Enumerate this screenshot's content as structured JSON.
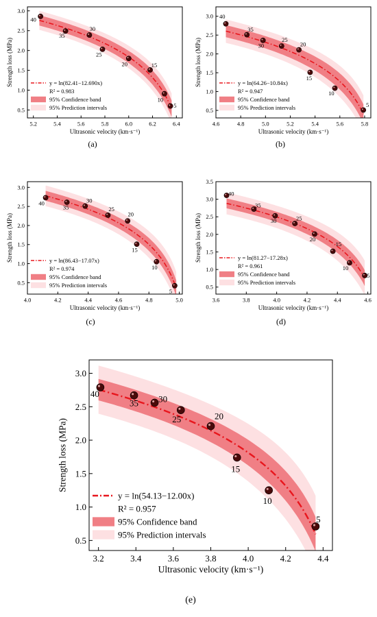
{
  "colors": {
    "fit_line": "#e8161d",
    "confidence_band": "#f07f85",
    "prediction_band": "#fde0e2",
    "point": "#4a0a0a"
  },
  "chart_data": [
    {
      "type": "scatter",
      "panel_label": "(a)",
      "xlabel": "Ultrasonic velocity (km·s⁻¹)",
      "ylabel": "Strength loss (MPa)",
      "xlim": [
        5.15,
        6.45
      ],
      "ylim": [
        0.3,
        3.1
      ],
      "xticks": [
        5.2,
        5.4,
        5.6,
        5.8,
        6.0,
        6.2,
        6.4
      ],
      "xtick_labels": [
        "5.2",
        "5.4",
        "5.6",
        "5.8",
        "6.0",
        "6.2",
        "6.4"
      ],
      "yticks": [
        0.5,
        1.0,
        1.5,
        2.0,
        2.5,
        3.0
      ],
      "ytick_labels": [
        "0.5",
        "1.0",
        "1.5",
        "2.0",
        "2.5",
        "3.0"
      ],
      "fit": {
        "a": 82.41,
        "b": 12.69,
        "x_start": 5.25,
        "x_end": 6.36
      },
      "ci_halfwidth": 0.13,
      "pi_halfwidth": 0.24,
      "points": [
        {
          "label": "40",
          "x": 5.26,
          "y": 2.86,
          "lx": -14,
          "ly": 10
        },
        {
          "label": "35",
          "x": 5.47,
          "y": 2.49,
          "lx": -7,
          "ly": 13
        },
        {
          "label": "30",
          "x": 5.67,
          "y": 2.39,
          "lx": 6,
          "ly": -8
        },
        {
          "label": "25",
          "x": 5.78,
          "y": 2.03,
          "lx": -7,
          "ly": 14
        },
        {
          "label": "20",
          "x": 6.0,
          "y": 1.8,
          "lx": -8,
          "ly": 15
        },
        {
          "label": "15",
          "x": 6.18,
          "y": 1.51,
          "lx": 8,
          "ly": -5
        },
        {
          "label": "10",
          "x": 6.3,
          "y": 0.91,
          "lx": -8,
          "ly": 16
        },
        {
          "label": "5",
          "x": 6.35,
          "y": 0.6,
          "lx": 9,
          "ly": 3
        }
      ],
      "legend": {
        "fit_label": "y = ln(82.41−12.690x)",
        "r2_label": "R² = 0.983",
        "ci_label": "95% Confidence band",
        "pi_label": "95% Prediction intervals"
      }
    },
    {
      "type": "scatter",
      "panel_label": "(b)",
      "xlabel": "Ultrasonic velocity (km·s⁻¹)",
      "ylabel": "Strength loss (MPa)",
      "xlim": [
        4.6,
        5.85
      ],
      "ylim": [
        0.3,
        3.25
      ],
      "xticks": [
        4.6,
        4.8,
        5.0,
        5.2,
        5.4,
        5.6,
        5.8
      ],
      "xtick_labels": [
        "4.6",
        "4.8",
        "5.0",
        "5.2",
        "5.4",
        "5.6",
        "5.8"
      ],
      "yticks": [
        0.5,
        1.0,
        1.5,
        2.0,
        2.5,
        3.0
      ],
      "ytick_labels": [
        "0.5",
        "1.0",
        "1.5",
        "2.0",
        "2.5",
        "3.0"
      ],
      "fit": {
        "a": 64.26,
        "b": 10.84,
        "x_start": 4.68,
        "x_end": 5.79
      },
      "ci_halfwidth": 0.16,
      "pi_halfwidth": 0.31,
      "points": [
        {
          "label": "40",
          "x": 4.68,
          "y": 2.8,
          "lx": -7,
          "ly": -10
        },
        {
          "label": "35",
          "x": 4.85,
          "y": 2.51,
          "lx": 7,
          "ly": -6
        },
        {
          "label": "30",
          "x": 4.98,
          "y": 2.36,
          "lx": -4,
          "ly": 14
        },
        {
          "label": "25",
          "x": 5.13,
          "y": 2.21,
          "lx": 6,
          "ly": -8
        },
        {
          "label": "20",
          "x": 5.27,
          "y": 2.11,
          "lx": 8,
          "ly": -7
        },
        {
          "label": "15",
          "x": 5.36,
          "y": 1.51,
          "lx": -2,
          "ly": 15
        },
        {
          "label": "10",
          "x": 5.56,
          "y": 1.09,
          "lx": -7,
          "ly": 14
        },
        {
          "label": "5",
          "x": 5.79,
          "y": 0.51,
          "lx": 8,
          "ly": -6
        }
      ],
      "legend": {
        "fit_label": "y = ln(64.26−10.84x)",
        "r2_label": "R² = 0.947",
        "ci_label": "95% Confidence band",
        "pi_label": "95% Prediction intervals"
      }
    },
    {
      "type": "scatter",
      "panel_label": "(c)",
      "xlabel": "Ultrasonic velocity (km·s⁻¹)",
      "ylabel": "Strength loss (MPa)",
      "xlim": [
        4.0,
        5.02
      ],
      "ylim": [
        0.2,
        3.15
      ],
      "xticks": [
        4.0,
        4.2,
        4.4,
        4.6,
        4.8,
        5.0
      ],
      "xtick_labels": [
        "4.0",
        "4.2",
        "4.4",
        "4.6",
        "4.8",
        "5.0"
      ],
      "yticks": [
        0.5,
        1.0,
        1.5,
        2.0,
        2.5,
        3.0
      ],
      "ytick_labels": [
        "0.5",
        "1.0",
        "1.5",
        "2.0",
        "2.5",
        "3.0"
      ],
      "fit": {
        "a": 86.43,
        "b": 17.07,
        "x_start": 4.12,
        "x_end": 4.98
      },
      "ci_halfwidth": 0.13,
      "pi_halfwidth": 0.27,
      "points": [
        {
          "label": "40",
          "x": 4.12,
          "y": 2.73,
          "lx": -8,
          "ly": 15
        },
        {
          "label": "35",
          "x": 4.26,
          "y": 2.61,
          "lx": -2,
          "ly": 14
        },
        {
          "label": "30",
          "x": 4.38,
          "y": 2.51,
          "lx": 8,
          "ly": -7
        },
        {
          "label": "25",
          "x": 4.53,
          "y": 2.27,
          "lx": 7,
          "ly": -8
        },
        {
          "label": "20",
          "x": 4.66,
          "y": 2.12,
          "lx": 6,
          "ly": -9
        },
        {
          "label": "15",
          "x": 4.72,
          "y": 1.51,
          "lx": -4,
          "ly": 15
        },
        {
          "label": "10",
          "x": 4.85,
          "y": 1.05,
          "lx": -4,
          "ly": 15
        },
        {
          "label": "5",
          "x": 4.97,
          "y": 0.42,
          "lx": -8,
          "ly": 15
        }
      ],
      "legend": {
        "fit_label": "y = ln(86.43−17.07x)",
        "r2_label": "R² = 0.974",
        "ci_label": "95% Confidence band",
        "pi_label": "95% Prediction intervals"
      }
    },
    {
      "type": "scatter",
      "panel_label": "(d)",
      "xlabel": "Ultrasonic velocity (km·s⁻¹)",
      "ylabel": "Strength loss (MPa)",
      "xlim": [
        3.6,
        4.62
      ],
      "ylim": [
        0.3,
        3.5
      ],
      "xticks": [
        3.6,
        3.8,
        4.0,
        4.2,
        4.4,
        4.6
      ],
      "xtick_labels": [
        "3.6",
        "3.8",
        "4.0",
        "4.2",
        "4.4",
        "4.6"
      ],
      "yticks": [
        0.5,
        1.0,
        1.5,
        2.0,
        2.5,
        3.0,
        3.5
      ],
      "ytick_labels": [
        "0.5",
        "1.0",
        "1.5",
        "2.0",
        "2.5",
        "3.0",
        "3.5"
      ],
      "fit": {
        "a": 81.27,
        "b": 17.28,
        "x_start": 3.67,
        "x_end": 4.58
      },
      "ci_halfwidth": 0.14,
      "pi_halfwidth": 0.31,
      "points": [
        {
          "label": "40",
          "x": 3.67,
          "y": 3.11,
          "lx": 9,
          "ly": 1
        },
        {
          "label": "35",
          "x": 3.85,
          "y": 2.72,
          "lx": 8,
          "ly": -3
        },
        {
          "label": "30",
          "x": 3.99,
          "y": 2.53,
          "lx": -3,
          "ly": 14
        },
        {
          "label": "25",
          "x": 4.12,
          "y": 2.31,
          "lx": 8,
          "ly": -6
        },
        {
          "label": "20",
          "x": 4.25,
          "y": 2.01,
          "lx": -4,
          "ly": 14
        },
        {
          "label": "15",
          "x": 4.37,
          "y": 1.52,
          "lx": 11,
          "ly": -10
        },
        {
          "label": "10",
          "x": 4.48,
          "y": 1.19,
          "lx": -8,
          "ly": 14
        },
        {
          "label": "5",
          "x": 4.58,
          "y": 0.83,
          "lx": 7,
          "ly": 4
        }
      ],
      "legend": {
        "fit_label": "y = ln(81.27−17.28x)",
        "r2_label": "R² = 0.961",
        "ci_label": "95% Confidence band",
        "pi_label": "95% Prediction intervals"
      }
    },
    {
      "type": "scatter",
      "panel_label": "(e)",
      "xlabel": "Ultrasonic velocity (km·s⁻¹)",
      "ylabel": "Strength loss (MPa)",
      "xlim": [
        3.15,
        4.45
      ],
      "ylim": [
        0.35,
        3.2
      ],
      "xticks": [
        3.2,
        3.4,
        3.6,
        3.8,
        4.0,
        4.2,
        4.4
      ],
      "xtick_labels": [
        "3.2",
        "3.4",
        "3.6",
        "3.8",
        "4.0",
        "4.2",
        "4.4"
      ],
      "yticks": [
        0.5,
        1.0,
        1.5,
        2.0,
        2.5,
        3.0
      ],
      "ytick_labels": [
        "0.5",
        "1.0",
        "1.5",
        "2.0",
        "2.5",
        "3.0"
      ],
      "fit": {
        "a": 54.13,
        "b": 12.0,
        "x_start": 3.2,
        "x_end": 4.36
      },
      "ci_halfwidth": 0.16,
      "pi_halfwidth": 0.36,
      "points": [
        {
          "label": "40",
          "x": 3.21,
          "y": 2.79,
          "lx": -8,
          "ly": 14
        },
        {
          "label": "35",
          "x": 3.39,
          "y": 2.67,
          "lx": 0,
          "ly": 16
        },
        {
          "label": "30",
          "x": 3.5,
          "y": 2.56,
          "lx": 12,
          "ly": -1
        },
        {
          "label": "25",
          "x": 3.64,
          "y": 2.45,
          "lx": -6,
          "ly": 18
        },
        {
          "label": "20",
          "x": 3.8,
          "y": 2.21,
          "lx": 12,
          "ly": -10
        },
        {
          "label": "15",
          "x": 3.94,
          "y": 1.74,
          "lx": -2,
          "ly": 21
        },
        {
          "label": "10",
          "x": 4.11,
          "y": 1.25,
          "lx": -2,
          "ly": 20
        },
        {
          "label": "5",
          "x": 4.36,
          "y": 0.71,
          "lx": 4,
          "ly": -6
        }
      ],
      "legend": {
        "fit_label": "y = ln(54.13−12.00x)",
        "r2_label": "R² = 0.957",
        "ci_label": "95% Confidence band",
        "pi_label": "95% Prediction intervals"
      }
    }
  ]
}
